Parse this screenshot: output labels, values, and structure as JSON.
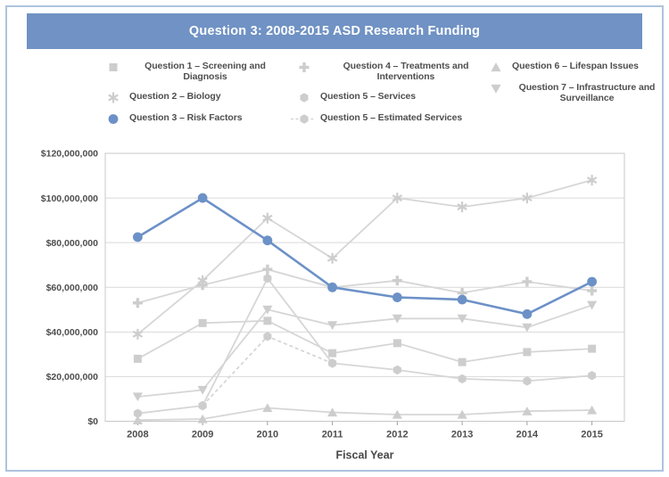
{
  "title_bar": {
    "title": "Question 3: 2008-2015 ASD Research Funding"
  },
  "colors": {
    "header_blue": "#7092c4",
    "frame_border": "#aec3de",
    "series_blue": "#6c91c7",
    "series_gray_marker": "#cdcdcd",
    "series_gray_line": "#d6d6d6",
    "gridline": "#d9d9d9",
    "plot_border": "#c8c8c8",
    "axis_text": "#4e4e4e",
    "legend_text": "#4f4f4f"
  },
  "legend_columns": [
    [
      "q1",
      "q2",
      "q3"
    ],
    [
      "q4",
      "q5",
      "q5est"
    ],
    [
      "q6",
      "q7"
    ]
  ],
  "chart_data": {
    "type": "line",
    "title": "Question 3: 2008-2015 ASD Research Funding",
    "xlabel": "Fiscal Year",
    "ylabel": "",
    "ylim": [
      0,
      120000000
    ],
    "ytick_interval": 20000000,
    "ytick_labels": [
      "$0",
      "$20,000,000",
      "$40,000,000",
      "$60,000,000",
      "$80,000,000",
      "$100,000,000",
      "$120,000,000"
    ],
    "categories": [
      "2008",
      "2009",
      "2010",
      "2011",
      "2012",
      "2013",
      "2014",
      "2015"
    ],
    "grid": "horizontal",
    "legend_position": "top",
    "series": [
      {
        "id": "q1",
        "name": "Question 1 – Screening and Diagnosis",
        "marker": "square",
        "color": "gray",
        "dashed": false,
        "values": [
          28000000,
          44000000,
          45000000,
          30500000,
          35000000,
          26500000,
          31000000,
          32500000
        ]
      },
      {
        "id": "q2",
        "name": "Question 2 – Biology",
        "marker": "asterisk",
        "color": "gray",
        "dashed": false,
        "values": [
          39000000,
          63000000,
          91000000,
          73000000,
          100000000,
          96000000,
          100000000,
          108000000
        ]
      },
      {
        "id": "q4",
        "name": "Question 4 – Treatments and Interventions",
        "marker": "plus",
        "color": "gray",
        "dashed": false,
        "values": [
          53000000,
          61000000,
          68000000,
          60000000,
          63000000,
          57500000,
          62500000,
          58500000
        ]
      },
      {
        "id": "q5",
        "name": "Question 5 – Services",
        "marker": "hexagon",
        "color": "gray",
        "dashed": false,
        "values": [
          3500000,
          7000000,
          64000000,
          26000000,
          23000000,
          19000000,
          18000000,
          20500000
        ]
      },
      {
        "id": "q6",
        "name": "Question 6 – Lifespan Issues",
        "marker": "triangle-up",
        "color": "gray",
        "dashed": false,
        "values": [
          500000,
          1000000,
          6000000,
          4000000,
          3000000,
          3000000,
          4500000,
          5000000
        ]
      },
      {
        "id": "q7",
        "name": "Question 7 – Infrastructure and Surveillance",
        "marker": "triangle-down",
        "color": "gray",
        "dashed": false,
        "values": [
          11000000,
          14000000,
          50000000,
          43000000,
          46000000,
          46000000,
          42000000,
          52000000
        ]
      },
      {
        "id": "q5est",
        "name": "Question 5 – Estimated Services",
        "marker": "hexagon",
        "color": "gray",
        "dashed": true,
        "values": [
          null,
          7000000,
          38000000,
          26000000,
          null,
          null,
          null,
          null
        ]
      },
      {
        "id": "q3",
        "name": "Question 3 – Risk Factors",
        "marker": "circle",
        "color": "blue",
        "dashed": false,
        "values": [
          82500000,
          100000000,
          81000000,
          60000000,
          55500000,
          54500000,
          48000000,
          62500000
        ]
      }
    ]
  }
}
